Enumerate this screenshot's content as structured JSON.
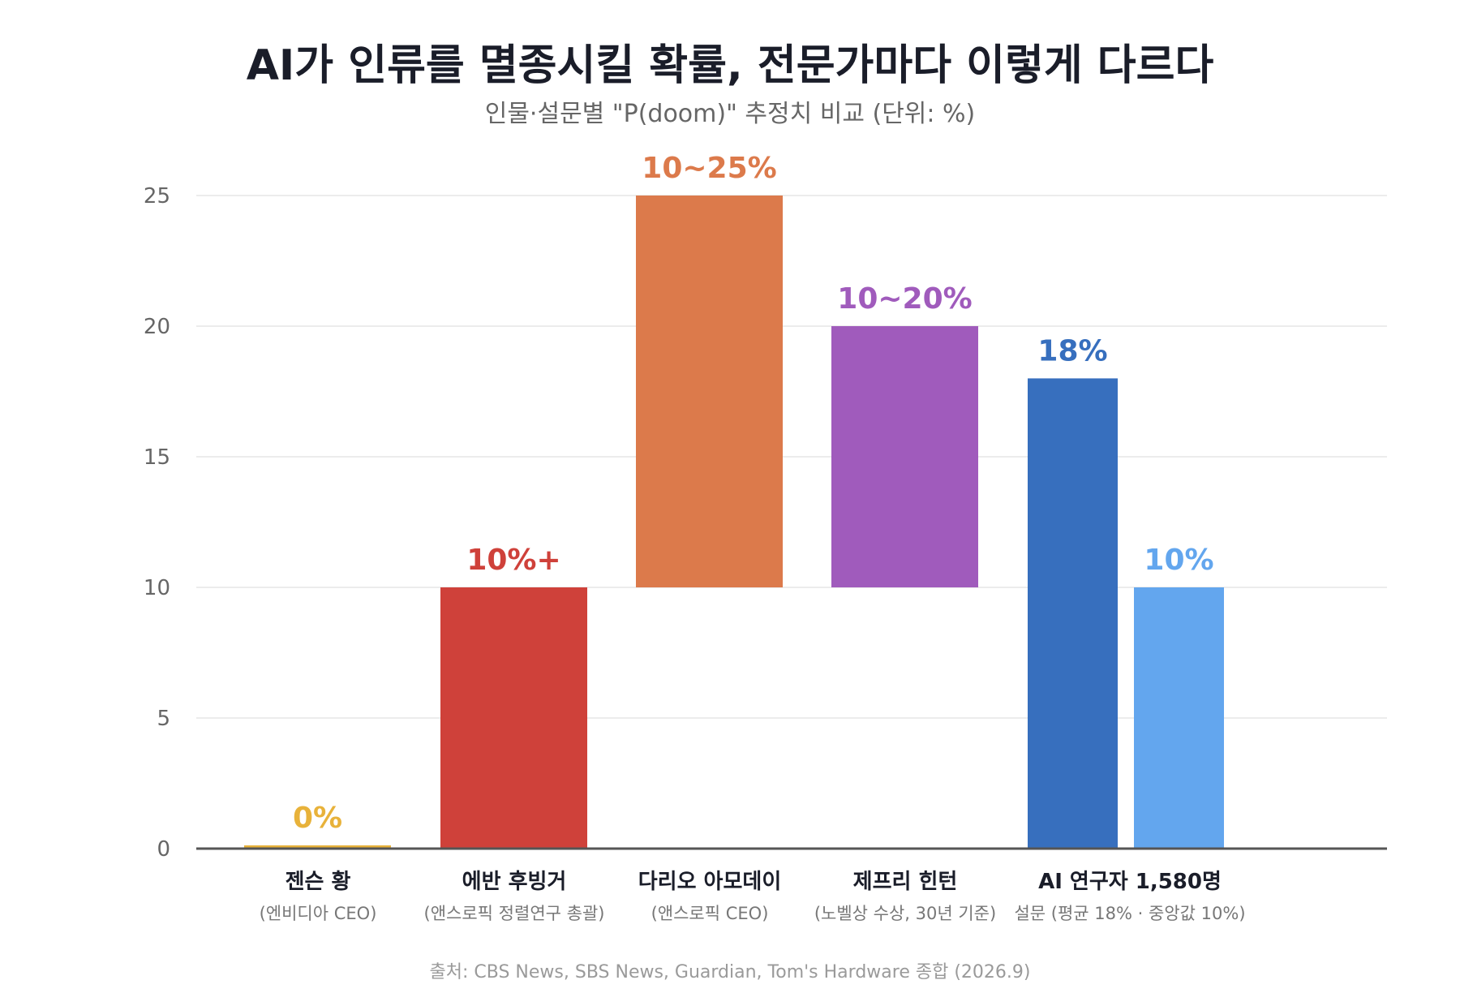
{
  "title": "AI가 인류를 멸종시킬 확률, 전문가마다 이렇게 다르다",
  "subtitle": "인물·설문별 \"P(doom)\" 추정치 비교 (단위: %)",
  "source": "출처: CBS News, SBS News, Guardian, Tom's Hardware 종합 (2026.9)",
  "chart_data": {
    "type": "bar",
    "ylim": [
      0,
      25
    ],
    "yticks": [
      0,
      5,
      10,
      15,
      20,
      25
    ],
    "grid": true,
    "bars": [
      {
        "name": "젠슨 황",
        "sub": "(엔비디아 CEO)",
        "low": 0,
        "high": 0,
        "label": "0%",
        "color": "#e8b23a"
      },
      {
        "name": "에반 후빙거",
        "sub": "(앤스로픽 정렬연구 총괄)",
        "low": 0,
        "high": 10,
        "label": "10%+",
        "color": "#cf413a"
      },
      {
        "name": "다리오 아모데이",
        "sub": "(앤스로픽 CEO)",
        "low": 10,
        "high": 25,
        "label": "10~25%",
        "color": "#dc7a4b"
      },
      {
        "name": "제프리 힌턴",
        "sub": "(노벨상 수상, 30년 기준)",
        "low": 10,
        "high": 20,
        "label": "10~20%",
        "color": "#a05bbc"
      },
      {
        "name": "AI 연구자 1,580명",
        "sub": "설문 (평균 18% · 중앙값 10%)",
        "low": 0,
        "high": 18,
        "label": "18%",
        "color": "#376fbe"
      },
      {
        "name": "",
        "sub": "",
        "low": 0,
        "high": 10,
        "label": "10%",
        "color": "#63a6ee"
      }
    ]
  }
}
